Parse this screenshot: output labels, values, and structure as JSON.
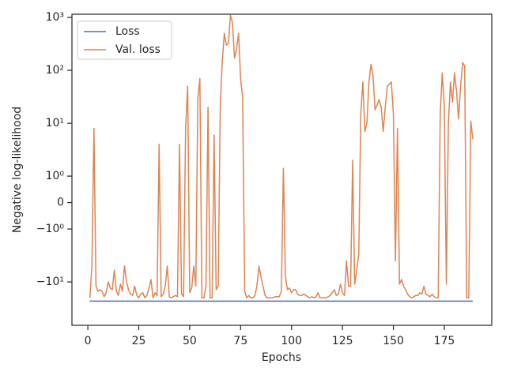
{
  "chart_data": {
    "type": "line",
    "xlabel": "Epochs",
    "ylabel": "Negative log-likelihood",
    "yscale": "symlog",
    "xlim": [
      -7.8,
      198.3
    ],
    "xticks": [
      0,
      25,
      50,
      75,
      100,
      125,
      150,
      175
    ],
    "ylim": [
      -66,
      1150
    ],
    "yticks": [
      {
        "value": -10,
        "label": "−10¹"
      },
      {
        "value": -1,
        "label": "−10⁰"
      },
      0,
      {
        "value": 1,
        "label": "10⁰"
      },
      {
        "value": 10,
        "label": "10¹"
      },
      {
        "value": 100,
        "label": "10²"
      },
      {
        "value": 1000,
        "label": "10³"
      }
    ],
    "legend": "upper left",
    "series": [
      {
        "name": "Loss",
        "color": "#4c72b0",
        "x": [
          1,
          189
        ],
        "values": [
          -23,
          -23
        ]
      },
      {
        "name": "Val. loss",
        "color": "#dd8452",
        "x": [
          1,
          2,
          3,
          4,
          5,
          6,
          7,
          8,
          9,
          10,
          11,
          12,
          13,
          14,
          15,
          16,
          17,
          18,
          19,
          20,
          21,
          22,
          23,
          24,
          25,
          26,
          27,
          28,
          29,
          30,
          31,
          32,
          33,
          34,
          35,
          36,
          37,
          38,
          39,
          40,
          41,
          42,
          43,
          44,
          45,
          46,
          47,
          48,
          49,
          50,
          51,
          52,
          53,
          54,
          55,
          56,
          57,
          58,
          59,
          60,
          61,
          62,
          63,
          64,
          65,
          66,
          67,
          68,
          69,
          70,
          71,
          72,
          73,
          74,
          75,
          76,
          77,
          78,
          79,
          80,
          81,
          82,
          83,
          84,
          85,
          86,
          87,
          88,
          89,
          90,
          91,
          92,
          93,
          94,
          95,
          96,
          97,
          98,
          99,
          100,
          101,
          102,
          103,
          104,
          105,
          106,
          107,
          108,
          109,
          110,
          111,
          112,
          113,
          114,
          115,
          116,
          117,
          118,
          119,
          120,
          121,
          122,
          123,
          124,
          125,
          126,
          127,
          128,
          129,
          130,
          131,
          132,
          133,
          134,
          135,
          136,
          137,
          138,
          139,
          140,
          141,
          142,
          143,
          144,
          145,
          146,
          147,
          148,
          149,
          150,
          151,
          152,
          153,
          154,
          155,
          156,
          157,
          158,
          159,
          160,
          161,
          162,
          163,
          164,
          165,
          166,
          167,
          168,
          169,
          170,
          171,
          172,
          173,
          174,
          175,
          176,
          177,
          178,
          179,
          180,
          181,
          182,
          183,
          184,
          185,
          186,
          187,
          188,
          189
        ],
        "values": [
          -20,
          -5,
          8,
          -12,
          -15,
          -14,
          -15,
          -19,
          -16,
          -10,
          -13,
          -14,
          -6,
          -15,
          -18,
          -11,
          -15,
          -5,
          -10,
          -14,
          -17,
          -18,
          -12,
          -18,
          -20,
          -17,
          -16,
          -20,
          -18,
          -13,
          -9,
          -20,
          -16,
          -18,
          4,
          -19,
          -17,
          -12,
          -5,
          -19,
          -20,
          -19,
          -18,
          -19,
          4,
          -17,
          -19,
          8,
          50,
          -16,
          -13,
          -5,
          -12,
          30,
          70,
          -20,
          -20,
          -12,
          20,
          -20,
          -20,
          6,
          -14,
          -12,
          20,
          150,
          500,
          300,
          320,
          1100,
          800,
          170,
          250,
          500,
          70,
          30,
          -15,
          -20,
          -18,
          -20,
          -20,
          -18,
          -12,
          -5,
          -8,
          -12,
          -18,
          -20,
          -20,
          -20,
          -20,
          -19,
          -19,
          -19,
          -15,
          1.4,
          -8,
          -14,
          -13,
          -16,
          -14,
          -14,
          -17,
          -18,
          -18,
          -17,
          -18,
          -19,
          -20,
          -19,
          -20,
          -19,
          -16,
          -20,
          -20,
          -20,
          -20,
          -19,
          -18,
          -16,
          -14,
          -18,
          -17,
          -11,
          -16,
          -18,
          -4,
          -12,
          -12,
          2,
          -11,
          -6,
          -3,
          15,
          60,
          7,
          10,
          60,
          130,
          80,
          18,
          22,
          28,
          20,
          7,
          20,
          50,
          55,
          60,
          15,
          -4,
          8,
          -11,
          -9,
          -12,
          -14,
          -17,
          -19,
          -20,
          -19,
          -18,
          -18,
          -16,
          -17,
          -12,
          -17,
          -18,
          -19,
          -17,
          -19,
          -20,
          -20,
          15,
          90,
          20,
          -11,
          10,
          60,
          25,
          90,
          40,
          12,
          50,
          140,
          120,
          -20,
          -20,
          11,
          5
        ]
      }
    ]
  }
}
